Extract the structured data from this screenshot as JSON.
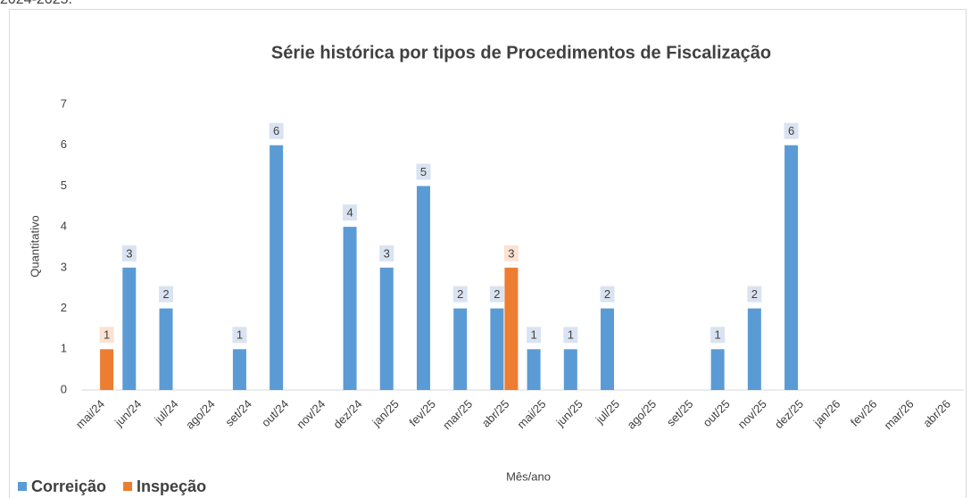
{
  "top_text": "2024-2025.",
  "chart_data": {
    "type": "bar",
    "title": "Série histórica por tipos de Procedimentos de Fiscalização",
    "x_label": "Mês/ano",
    "y_label": "Quantitativo",
    "categories": [
      "mai/24",
      "jun/24",
      "jul/24",
      "ago/24",
      "set/24",
      "out/24",
      "nov/24",
      "dez/24",
      "jan/25",
      "fev/25",
      "mar/25",
      "abr/25",
      "mai/25",
      "jun/25",
      "jul/25",
      "ago/25",
      "set/25",
      "out/25",
      "nov/25",
      "dez/25",
      "jan/26",
      "fev/26",
      "mar/26",
      "abr/26"
    ],
    "series": [
      {
        "name": "Correição",
        "color": "#5b9bd5",
        "label_bg": "#dae3f1",
        "values": [
          null,
          3,
          2,
          null,
          1,
          6,
          null,
          4,
          3,
          5,
          2,
          2,
          1,
          1,
          2,
          null,
          null,
          1,
          2,
          6,
          null,
          null,
          null,
          null
        ]
      },
      {
        "name": "Inspeção",
        "color": "#ed7d31",
        "label_bg": "#fbe2d2",
        "values": [
          1,
          null,
          null,
          null,
          null,
          null,
          null,
          null,
          null,
          null,
          null,
          3,
          null,
          null,
          null,
          null,
          null,
          null,
          null,
          null,
          null,
          null,
          null,
          null
        ]
      }
    ],
    "ylim": [
      0,
      7
    ],
    "yticks": [
      0,
      1,
      2,
      3,
      4,
      5,
      6,
      7
    ],
    "grid": false,
    "legend": "bottom-left"
  }
}
